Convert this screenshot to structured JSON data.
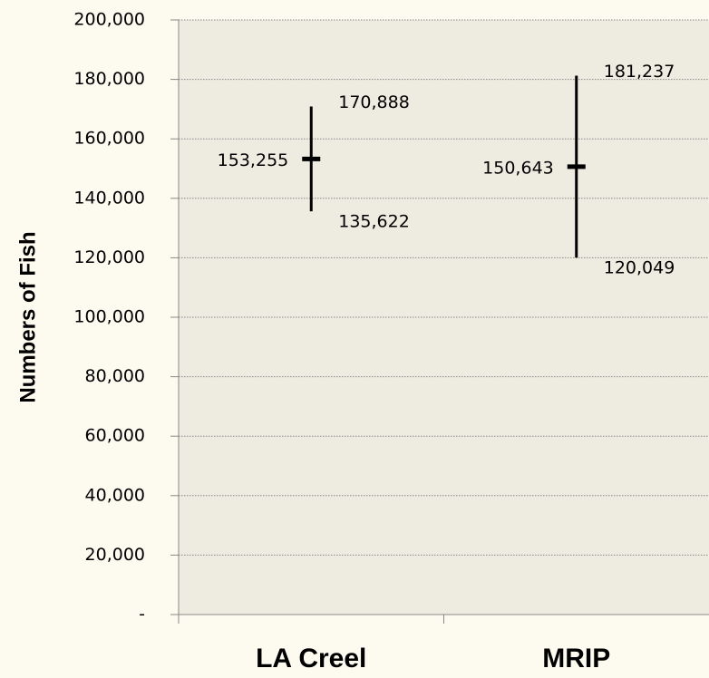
{
  "chart_data": {
    "type": "highlow",
    "categories": [
      "LA Creel",
      "MRIP"
    ],
    "values": [
      153255,
      150643
    ],
    "value_labels": [
      "153,255",
      "150,643"
    ],
    "highs": [
      170888,
      181237
    ],
    "high_labels": [
      "170,888",
      "181,237"
    ],
    "lows": [
      135622,
      120049
    ],
    "low_labels": [
      "135,622",
      "120,049"
    ],
    "color": "#000000",
    "y_label": "Numbers of Fish",
    "ylim": [
      0,
      200000
    ],
    "yticks": [
      {
        "value": 0,
        "label": "-"
      },
      {
        "value": 20000,
        "label": "20,000"
      },
      {
        "value": 40000,
        "label": "40,000"
      },
      {
        "value": 60000,
        "label": "60,000"
      },
      {
        "value": 80000,
        "label": "80,000"
      },
      {
        "value": 100000,
        "label": "100,000"
      },
      {
        "value": 120000,
        "label": "120,000"
      },
      {
        "value": 140000,
        "label": "140,000"
      },
      {
        "value": 160000,
        "label": "160,000"
      },
      {
        "value": 180000,
        "label": "180,000"
      },
      {
        "value": 200000,
        "label": "200,000"
      }
    ],
    "grid": true
  }
}
